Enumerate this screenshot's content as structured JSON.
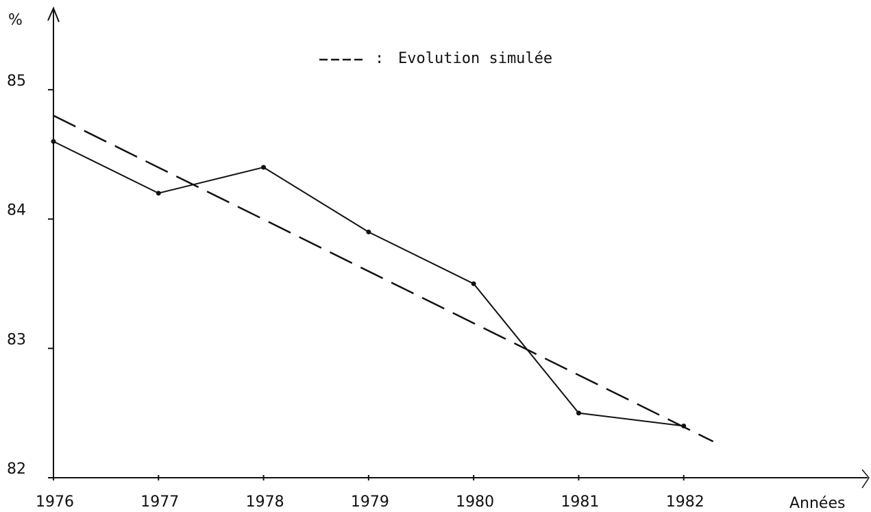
{
  "chart_data": {
    "type": "line",
    "ylabel": "%",
    "xlabel": "Années",
    "xlim": [
      1976,
      1983.75
    ],
    "xticks": [
      1976,
      1977,
      1978,
      1979,
      1980,
      1981,
      1982
    ],
    "ylim": [
      82,
      85.63
    ],
    "yticks": [
      82,
      83,
      84,
      85
    ],
    "legend_separator": ":",
    "series": [
      {
        "color": "#111111",
        "dashed": false,
        "x": [
          1976,
          1977,
          1978,
          1979,
          1980,
          1981,
          1982
        ],
        "values": [
          84.6,
          84.2,
          84.4,
          83.9,
          83.5,
          82.5,
          82.4
        ]
      },
      {
        "name": "Evolution simulée",
        "color": "#111111",
        "dashed": true,
        "x": [
          1976,
          1982.28
        ],
        "values": [
          84.8,
          82.28
        ]
      }
    ]
  }
}
